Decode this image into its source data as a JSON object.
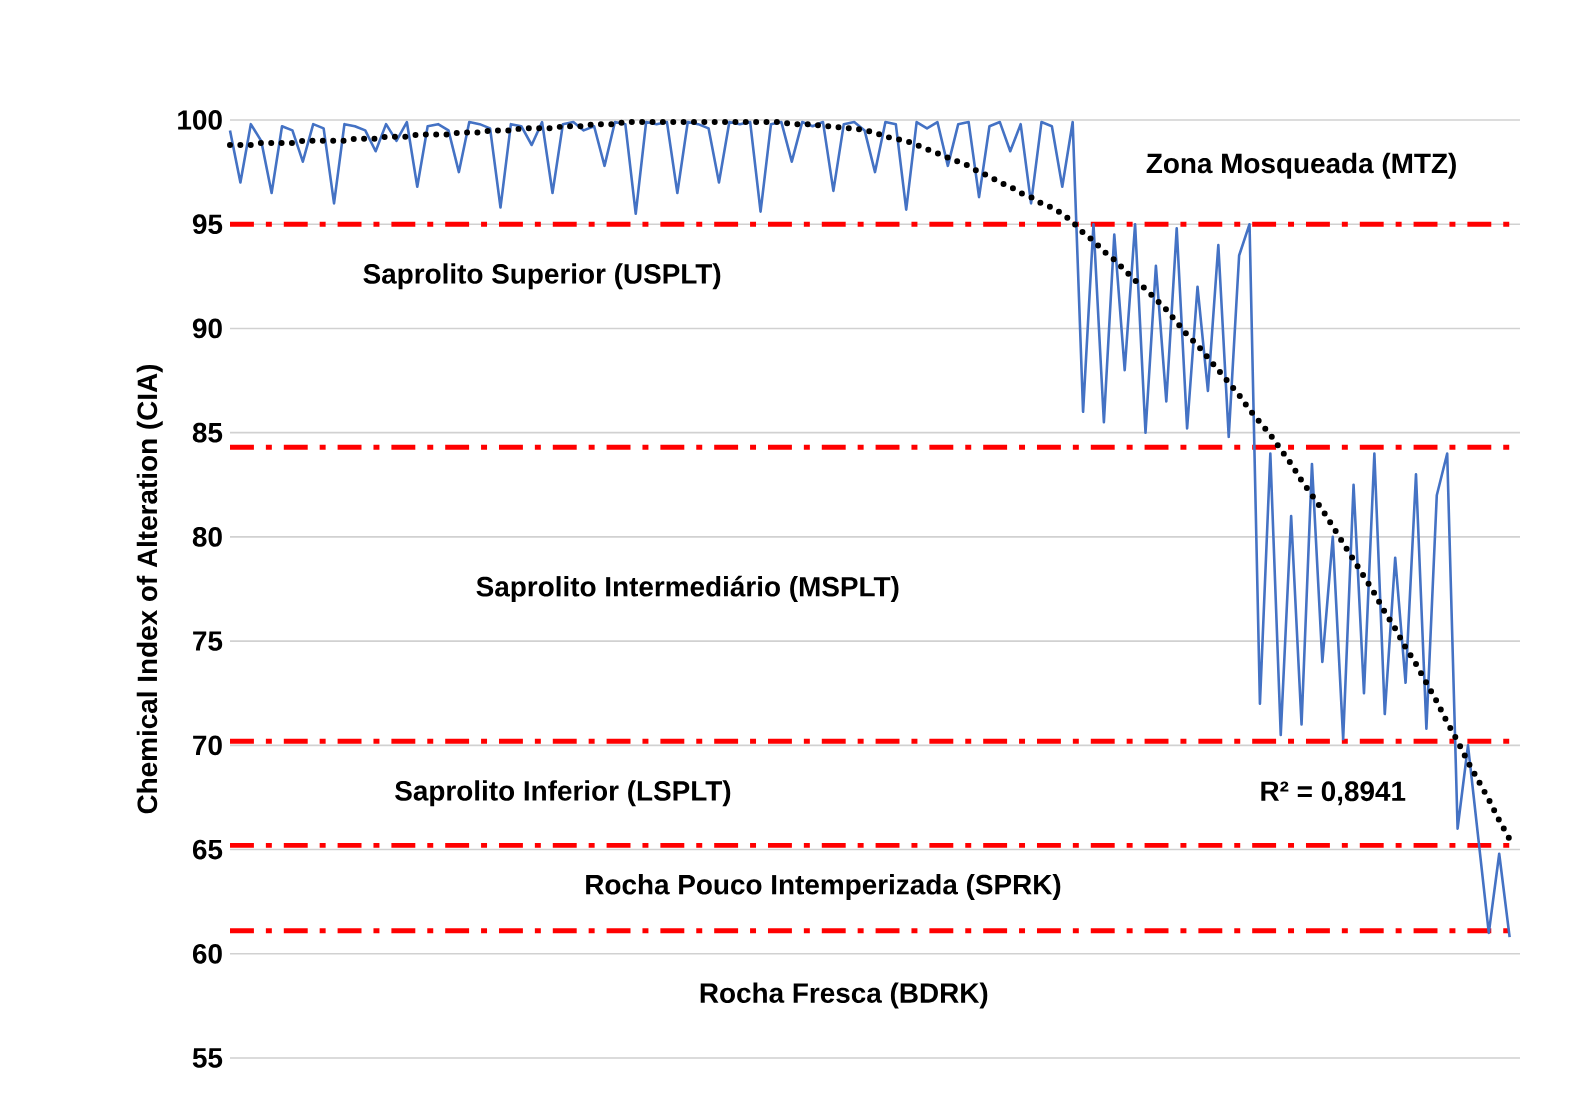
{
  "chart_data": {
    "type": "line",
    "ylabel": "Chemical Index of Alteration (CIA)",
    "categories": [
      null,
      null,
      null,
      null,
      null,
      null,
      null,
      null,
      null,
      null,
      null,
      null,
      null,
      null,
      null,
      null,
      null,
      null,
      null,
      null,
      null,
      null,
      null,
      null,
      null,
      null,
      null,
      null,
      null,
      null,
      null,
      null,
      null,
      null,
      null,
      null,
      null,
      null,
      null,
      null,
      null,
      null,
      null,
      null,
      null,
      null,
      null,
      null,
      null,
      null,
      null,
      null,
      null,
      null,
      null,
      null,
      null,
      null,
      null,
      null,
      null,
      null,
      null,
      null,
      null,
      null,
      null,
      null,
      null,
      null,
      null,
      null,
      null,
      null,
      null,
      null,
      null,
      null,
      null,
      null,
      null,
      null,
      null,
      null,
      null,
      null,
      null,
      null,
      null,
      null,
      null,
      null,
      null,
      null,
      null,
      null,
      null,
      null,
      null,
      null,
      null,
      null,
      null,
      null,
      null,
      null,
      null,
      null,
      null,
      null,
      null,
      null,
      null,
      null,
      null,
      null,
      null,
      null,
      null,
      null,
      null,
      null,
      null,
      null
    ],
    "series": [
      {
        "color": "#4472c4",
        "line_style": "solid",
        "values": [
          99.5,
          97,
          99.8,
          99,
          96.5,
          99.7,
          99.5,
          98,
          99.8,
          99.6,
          96,
          99.8,
          99.7,
          99.5,
          98.5,
          99.8,
          99,
          99.9,
          96.8,
          99.7,
          99.8,
          99.5,
          97.5,
          99.9,
          99.8,
          99.6,
          95.8,
          99.8,
          99.7,
          98.8,
          99.9,
          96.5,
          99.8,
          99.9,
          99.5,
          99.7,
          97.8,
          99.9,
          99.8,
          95.5,
          99.9,
          99.8,
          99.9,
          96.5,
          99.9,
          99.8,
          99.6,
          97,
          99.9,
          99.8,
          99.9,
          95.6,
          99.8,
          99.9,
          98,
          99.9,
          99.7,
          99.9,
          96.6,
          99.8,
          99.9,
          99.5,
          97.5,
          99.9,
          99.8,
          95.7,
          99.9,
          99.6,
          99.9,
          97.8,
          99.8,
          99.9,
          96.3,
          99.7,
          99.9,
          98.5,
          99.8,
          96,
          99.9,
          99.7,
          96.8,
          99.9,
          86,
          95,
          85.5,
          94.5,
          88,
          95,
          85,
          93,
          86.5,
          94.8,
          85.2,
          92,
          87,
          94,
          84.8,
          93.5,
          95,
          72,
          84,
          70.5,
          81,
          71,
          83.5,
          74,
          80,
          70.3,
          82.5,
          72.5,
          84,
          71.5,
          79,
          73,
          83,
          70.8,
          82,
          84,
          66,
          70,
          65.5,
          61,
          64.8,
          60.8
        ]
      },
      {
        "color": "#000000",
        "line_style": "dotted",
        "values": [
          98.8,
          98.8,
          98.8,
          98.9,
          98.9,
          98.9,
          98.9,
          99.0,
          99.0,
          99.0,
          99.0,
          99.0,
          99.1,
          99.1,
          99.1,
          99.2,
          99.2,
          99.2,
          99.3,
          99.3,
          99.3,
          99.3,
          99.4,
          99.4,
          99.4,
          99.5,
          99.5,
          99.5,
          99.6,
          99.6,
          99.6,
          99.6,
          99.7,
          99.7,
          99.7,
          99.8,
          99.8,
          99.8,
          99.9,
          99.9,
          99.9,
          99.9,
          99.9,
          99.9,
          99.9,
          99.9,
          99.9,
          99.9,
          99.9,
          99.9,
          99.9,
          99.9,
          99.9,
          99.9,
          99.8,
          99.8,
          99.8,
          99.7,
          99.7,
          99.6,
          99.6,
          99.5,
          99.4,
          99.2,
          99.1,
          99.0,
          98.8,
          98.6,
          98.4,
          98.2,
          98.0,
          97.8,
          97.5,
          97.3,
          97.0,
          96.8,
          96.5,
          96.3,
          96.0,
          95.8,
          95.5,
          95.1,
          94.6,
          94.2,
          93.7,
          93.3,
          92.8,
          92.3,
          91.9,
          91.4,
          90.9,
          90.3,
          89.7,
          89.2,
          88.6,
          88.0,
          87.4,
          86.8,
          86.1,
          85.5,
          84.9,
          84.2,
          83.5,
          82.7,
          82.0,
          81.3,
          80.5,
          79.7,
          78.9,
          78.1,
          77.3,
          76.4,
          75.6,
          74.7,
          73.9,
          73.0,
          72.1,
          71.1,
          70.2,
          69.2,
          68.3,
          67.4,
          66.4,
          65.5
        ]
      }
    ],
    "ylim": [
      55,
      100
    ],
    "yticks": [
      55,
      60,
      65,
      70,
      75,
      80,
      85,
      90,
      95,
      100
    ],
    "grid": "y",
    "ref_lines": [
      {
        "axis": "y",
        "value": 95,
        "color": "#ff0000",
        "line_style": "dashdot"
      },
      {
        "axis": "y",
        "value": 84.3,
        "color": "#ff0000",
        "line_style": "dashdot"
      },
      {
        "axis": "y",
        "value": 70.2,
        "color": "#ff0000",
        "line_style": "dashdot"
      },
      {
        "axis": "y",
        "value": 65.2,
        "color": "#ff0000",
        "line_style": "dashdot"
      },
      {
        "axis": "y",
        "value": 61.1,
        "color": "#ff0000",
        "line_style": "dashdot"
      }
    ],
    "annotations": [
      "Zona Mosqueada (MTZ)",
      "Saprolito Superior (USPLT)",
      "Saprolito Intermediário (MSPLT)",
      "Saprolito Inferior (LSPLT)",
      "Rocha Pouco Intemperizada (SPRK)",
      "Rocha Fresca (BDRK)",
      "R² = 0,8941"
    ]
  }
}
